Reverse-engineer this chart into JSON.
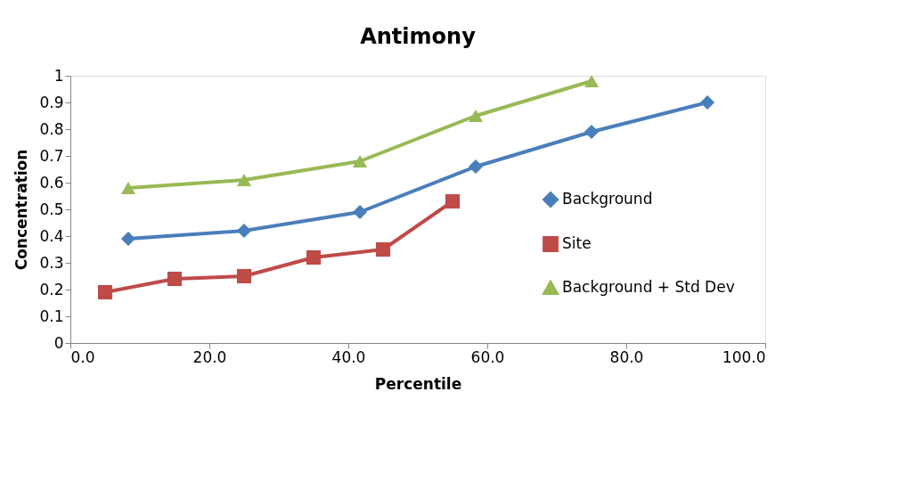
{
  "chart_data": {
    "type": "line",
    "title": "Antimony",
    "xlabel": "Percentile",
    "ylabel": "Concentration",
    "xlim": [
      0,
      100
    ],
    "xticks": [
      {
        "value": 0,
        "label": "0.0"
      },
      {
        "value": 20,
        "label": "20.0"
      },
      {
        "value": 40,
        "label": "40.0"
      },
      {
        "value": 60,
        "label": "60.0"
      },
      {
        "value": 80,
        "label": "80.0"
      },
      {
        "value": 100,
        "label": "100.0"
      }
    ],
    "ylim": [
      0,
      1
    ],
    "yticks": [
      0,
      0.1,
      0.2,
      0.3,
      0.4,
      0.5,
      0.6,
      0.7,
      0.8,
      0.9,
      1
    ],
    "grid": false,
    "legend": "right",
    "series": [
      {
        "name": "Background",
        "color": "#4a7ebb",
        "marker": "diamond",
        "x": [
          8.33,
          25,
          41.67,
          58.33,
          75,
          91.67
        ],
        "values": [
          0.39,
          0.42,
          0.49,
          0.66,
          0.79,
          0.9
        ]
      },
      {
        "name": "Site",
        "color": "#be4b48",
        "marker": "square",
        "x": [
          5,
          15,
          25,
          35,
          45,
          55
        ],
        "values": [
          0.19,
          0.24,
          0.25,
          0.32,
          0.35,
          0.53
        ]
      },
      {
        "name": "Background + Std Dev",
        "color": "#98b954",
        "marker": "triangle",
        "x": [
          8.33,
          25,
          41.67,
          58.33,
          75
        ],
        "values": [
          0.58,
          0.61,
          0.68,
          0.85,
          0.98
        ]
      }
    ]
  }
}
